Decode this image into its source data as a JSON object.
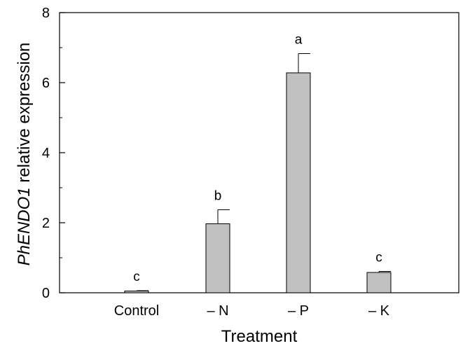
{
  "chart_data": {
    "type": "bar",
    "title": "",
    "xlabel": "Treatment",
    "ylabel_italic": "PhENDO1",
    "ylabel_rest": " relative expression",
    "categories": [
      "Control",
      "– N",
      "– P",
      "– K"
    ],
    "values": [
      0.05,
      1.97,
      6.28,
      0.58
    ],
    "errors": [
      0.01,
      0.4,
      0.55,
      0.03
    ],
    "significance_letters": [
      "c",
      "b",
      "a",
      "c"
    ],
    "ylim": [
      0,
      8
    ],
    "yticks": [
      0,
      2,
      4,
      6,
      8
    ],
    "ytick_labels": [
      "0",
      "2",
      "4",
      "6",
      "8"
    ],
    "grid": false,
    "bar_color": "#c0c0c0",
    "bar_edge_color": "#000000"
  }
}
